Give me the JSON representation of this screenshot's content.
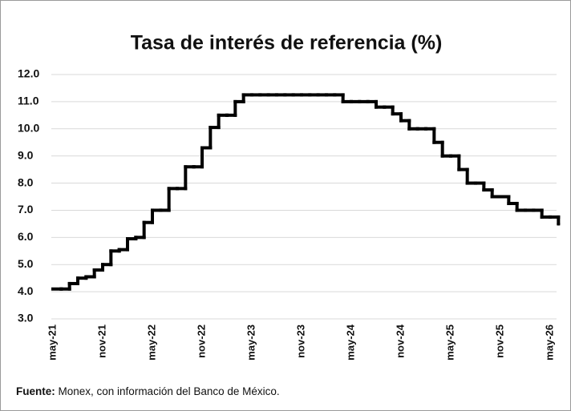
{
  "chart_data": {
    "type": "step",
    "title": "Tasa de interés de referencia (%)",
    "categories": [
      "may-21",
      null,
      null,
      null,
      null,
      null,
      "nov-21",
      null,
      null,
      null,
      null,
      null,
      "may-22",
      null,
      null,
      null,
      null,
      null,
      "nov-22",
      null,
      null,
      null,
      null,
      null,
      "may-23",
      null,
      null,
      null,
      null,
      null,
      "nov-23",
      null,
      null,
      null,
      null,
      null,
      "may-24",
      null,
      null,
      null,
      null,
      null,
      "nov-24",
      null,
      null,
      null,
      null,
      null,
      "may-25",
      null,
      null,
      null,
      null,
      null,
      "nov-25",
      null,
      null,
      null,
      null,
      null,
      "may-26",
      null
    ],
    "values": [
      4.1,
      4.1,
      4.3,
      4.5,
      4.55,
      4.8,
      5.0,
      5.5,
      5.55,
      5.95,
      6.0,
      6.55,
      7.0,
      7.0,
      7.8,
      7.8,
      8.6,
      8.6,
      9.3,
      10.05,
      10.5,
      10.5,
      11.0,
      11.25,
      11.25,
      11.25,
      11.25,
      11.25,
      11.25,
      11.25,
      11.25,
      11.25,
      11.25,
      11.25,
      11.25,
      11.0,
      11.0,
      11.0,
      11.0,
      10.8,
      10.8,
      10.55,
      10.3,
      10.0,
      10.0,
      10.0,
      9.5,
      9.0,
      9.0,
      8.5,
      8.0,
      8.0,
      7.75,
      7.5,
      7.5,
      7.25,
      7.0,
      7.0,
      7.0,
      6.75,
      6.75,
      6.5
    ],
    "color": "#000000",
    "ylim": [
      3,
      12
    ],
    "yticks": [
      {
        "value": 3,
        "label": "3.0"
      },
      {
        "value": 4,
        "label": "4.0"
      },
      {
        "value": 5,
        "label": "5.0"
      },
      {
        "value": 6,
        "label": "6.0"
      },
      {
        "value": 7,
        "label": "7.0"
      },
      {
        "value": 8,
        "label": "8.0"
      },
      {
        "value": 9,
        "label": "9.0"
      },
      {
        "value": 10,
        "label": "10.0"
      },
      {
        "value": 11,
        "label": "11.0"
      },
      {
        "value": 12,
        "label": "12.0"
      }
    ],
    "grid": true
  },
  "source": {
    "label": "Fuente:",
    "text": "Monex, con información del Banco de México."
  }
}
